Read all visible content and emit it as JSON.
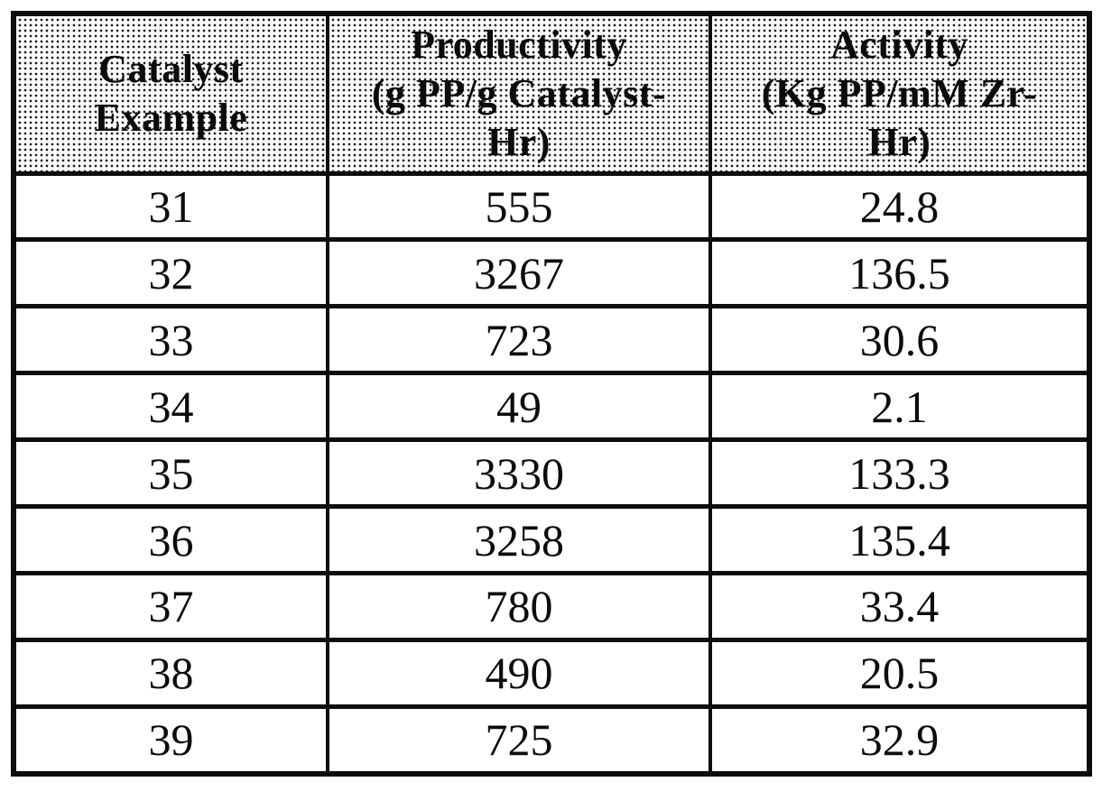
{
  "table": {
    "headers": [
      {
        "id": "catalyst_example",
        "label": "Catalyst\nExample"
      },
      {
        "id": "productivity",
        "label": "Productivity\n(g PP/g Catalyst-\nHr)"
      },
      {
        "id": "activity",
        "label": "Activity\n(Kg PP/mM Zr-\nHr)"
      }
    ],
    "rows": [
      {
        "example": "31",
        "productivity": "555",
        "activity": "24.8"
      },
      {
        "example": "32",
        "productivity": "3267",
        "activity": "136.5"
      },
      {
        "example": "33",
        "productivity": "723",
        "activity": "30.6"
      },
      {
        "example": "34",
        "productivity": "49",
        "activity": "2.1"
      },
      {
        "example": "35",
        "productivity": "3330",
        "activity": "133.3"
      },
      {
        "example": "36",
        "productivity": "3258",
        "activity": "135.4"
      },
      {
        "example": "37",
        "productivity": "780",
        "activity": "33.4"
      },
      {
        "example": "38",
        "productivity": "490",
        "activity": "20.5"
      },
      {
        "example": "39",
        "productivity": "725",
        "activity": "32.9"
      }
    ]
  },
  "colors": {
    "table_border": "#0d0d0d",
    "text": "#0c0c0c",
    "header_halftone_dot": "#1c1c1c",
    "page_background": "#ffffff"
  }
}
